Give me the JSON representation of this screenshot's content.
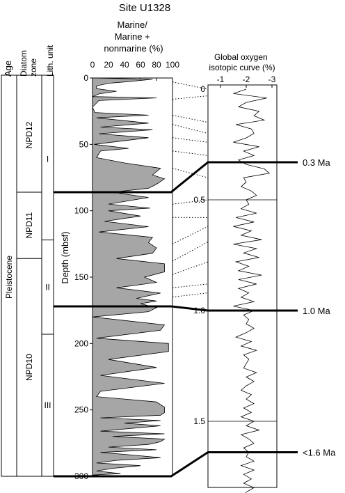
{
  "chart_data": {
    "type": "area",
    "title": "Site U1328",
    "columns": {
      "age": "Age",
      "diatom_zone": "Diatom zone",
      "lith_unit": "Lith. unit"
    },
    "age_label": "Pleistocene",
    "diatom_zones": [
      {
        "name": "NPD12",
        "top_mbsf": 0,
        "bottom_mbsf": 86
      },
      {
        "name": "NPD11",
        "top_mbsf": 86,
        "bottom_mbsf": 136
      },
      {
        "name": "NPD10",
        "top_mbsf": 136,
        "bottom_mbsf": 300
      }
    ],
    "lith_units": [
      {
        "name": "I",
        "top_mbsf": 0,
        "bottom_mbsf": 122
      },
      {
        "name": "II",
        "top_mbsf": 122,
        "bottom_mbsf": 193
      },
      {
        "name": "III",
        "top_mbsf": 193,
        "bottom_mbsf": 300
      }
    ],
    "marine_panel": {
      "title": "Marine/ Marine + nonmarine (%)",
      "xlabel_lines": [
        "Marine/",
        "Marine +",
        "nonmarine (%)"
      ],
      "ylabel": "Depth (mbsf)",
      "xlim": [
        0,
        100
      ],
      "ylim": [
        0,
        300
      ],
      "xticks": [
        "0",
        "20",
        "40",
        "60",
        "80",
        "100"
      ],
      "yticks": [
        "0",
        "50",
        "100",
        "150",
        "200",
        "250",
        "300"
      ],
      "series": [
        {
          "x": [
            0,
            75,
            40,
            20,
            5,
            5,
            30,
            8,
            0,
            80,
            8,
            0,
            3,
            70,
            5,
            70,
            10,
            75,
            8,
            70,
            2,
            45,
            10,
            5,
            40,
            85,
            75,
            90,
            80,
            70,
            25,
            70,
            20,
            72,
            20,
            60,
            15,
            70,
            8,
            75,
            70,
            80,
            75,
            30,
            90,
            90,
            65,
            80,
            30,
            85,
            55,
            80,
            60,
            80,
            70,
            0,
            90,
            85,
            5,
            95,
            95,
            20,
            80,
            10,
            90,
            10,
            5,
            80,
            90,
            90,
            85,
            10,
            85,
            40,
            85,
            10,
            90,
            25,
            90,
            85,
            70,
            20,
            80,
            10,
            50,
            85,
            30,
            5,
            60,
            25,
            5,
            35,
            0,
            25,
            35,
            0
          ],
          "depth": [
            0,
            1,
            3,
            4,
            6,
            8,
            10,
            12,
            14,
            15,
            17,
            22,
            26,
            28,
            30,
            34,
            37,
            39,
            42,
            45,
            50,
            53,
            55,
            60,
            64,
            68,
            73,
            76,
            80,
            83,
            86,
            90,
            95,
            98,
            100,
            104,
            108,
            112,
            116,
            120,
            124,
            128,
            132,
            136,
            140,
            146,
            150,
            154,
            158,
            162,
            166,
            168,
            170,
            173,
            176,
            180,
            186,
            190,
            196,
            200,
            206,
            212,
            218,
            224,
            230,
            236,
            240,
            244,
            248,
            252,
            254,
            256,
            258,
            260,
            262,
            266,
            268,
            270,
            272,
            274,
            276,
            278,
            280,
            282,
            284,
            286,
            288,
            290,
            292,
            294,
            296,
            298,
            299,
            300,
            300,
            300
          ]
        }
      ]
    },
    "isotope_panel": {
      "title": "Global oxygen isotopic curve (%)",
      "xlabel_lines": [
        "Global oxygen",
        "isotopic curve (%)"
      ],
      "xticks": [
        "-1",
        "-2",
        "-3"
      ],
      "xlim": [
        -0.7,
        -3.3
      ],
      "age_ticks": [
        "0",
        "0.5",
        "1.0",
        "1.5"
      ],
      "age_ma": [
        0,
        0.02,
        0.04,
        0.06,
        0.08,
        0.1,
        0.12,
        0.14,
        0.16,
        0.18,
        0.2,
        0.22,
        0.24,
        0.26,
        0.28,
        0.3,
        0.32,
        0.34,
        0.36,
        0.38,
        0.4,
        0.42,
        0.44,
        0.46,
        0.48,
        0.5,
        0.52,
        0.54,
        0.56,
        0.58,
        0.6,
        0.62,
        0.64,
        0.66,
        0.68,
        0.7,
        0.72,
        0.74,
        0.76,
        0.78,
        0.8,
        0.82,
        0.84,
        0.86,
        0.88,
        0.9,
        0.92,
        0.94,
        0.96,
        0.98,
        1.0,
        1.02,
        1.04,
        1.06,
        1.08,
        1.1,
        1.12,
        1.14,
        1.16,
        1.18,
        1.2,
        1.22,
        1.24,
        1.26,
        1.28,
        1.3,
        1.32,
        1.34,
        1.36,
        1.38,
        1.4,
        1.42,
        1.44,
        1.46,
        1.48,
        1.5,
        1.52,
        1.54,
        1.56,
        1.58,
        1.6,
        1.62,
        1.64,
        1.66,
        1.68,
        1.7,
        1.72,
        1.74,
        1.76,
        1.78,
        1.8,
        1.82,
        1.84,
        1.86,
        1.88
      ],
      "d18o": [
        -2.0,
        -1.5,
        -2.8,
        -2.0,
        -1.7,
        -2.5,
        -2.3,
        -2.7,
        -1.6,
        -2.2,
        -2.3,
        -2.0,
        -1.5,
        -2.5,
        -1.9,
        -2.3,
        -1.7,
        -2.0,
        -2.7,
        -2.9,
        -1.9,
        -2.0,
        -1.8,
        -2.2,
        -2.4,
        -2.0,
        -2.1,
        -1.8,
        -2.4,
        -1.6,
        -2.3,
        -1.5,
        -2.2,
        -1.8,
        -2.6,
        -1.5,
        -2.4,
        -1.9,
        -2.5,
        -1.6,
        -2.1,
        -1.7,
        -2.6,
        -1.7,
        -2.4,
        -1.7,
        -2.1,
        -1.8,
        -2.3,
        -1.5,
        -2.3,
        -1.9,
        -2.1,
        -2.0,
        -2.3,
        -2.0,
        -1.6,
        -2.2,
        -1.8,
        -2.4,
        -1.9,
        -2.1,
        -2.0,
        -1.9,
        -2.4,
        -2.0,
        -2.3,
        -2.0,
        -1.8,
        -2.2,
        -2.0,
        -2.3,
        -1.9,
        -2.2,
        -1.8,
        -2.3,
        -2.0,
        -2.5,
        -1.8,
        -2.1,
        -2.3,
        -1.9,
        -2.1,
        -2.0,
        -2.3,
        -1.8,
        -2.3,
        -1.9,
        -2.2,
        -1.9,
        -2.3,
        -2.0,
        -1.9,
        -2.3,
        -2.0
      ]
    },
    "tie_lines": [
      {
        "depth_mbsf": 3,
        "age_ma": 0.0
      },
      {
        "depth_mbsf": 16,
        "age_ma": 0.03
      },
      {
        "depth_mbsf": 28,
        "age_ma": 0.15
      },
      {
        "depth_mbsf": 35,
        "age_ma": 0.2
      },
      {
        "depth_mbsf": 45,
        "age_ma": 0.24
      },
      {
        "depth_mbsf": 55,
        "age_ma": 0.3
      },
      {
        "depth_mbsf": 68,
        "age_ma": 0.4
      },
      {
        "depth_mbsf": 95,
        "age_ma": 0.5
      },
      {
        "depth_mbsf": 105,
        "age_ma": 0.58
      },
      {
        "depth_mbsf": 125,
        "age_ma": 0.62
      },
      {
        "depth_mbsf": 138,
        "age_ma": 0.69
      },
      {
        "depth_mbsf": 148,
        "age_ma": 0.78
      },
      {
        "depth_mbsf": 158,
        "age_ma": 0.88
      },
      {
        "depth_mbsf": 165,
        "age_ma": 0.92
      }
    ],
    "age_markers": [
      {
        "label": "0.3 Ma",
        "depth_mbsf": 86,
        "age_ma": 0.33
      },
      {
        "label": "1.0 Ma",
        "depth_mbsf": 172,
        "age_ma": 1.0
      },
      {
        "label": "<1.6 Ma",
        "depth_mbsf": 300,
        "age_ma": 1.64
      }
    ],
    "colors": {
      "fill": "#a6a6a6",
      "line": "#000000"
    }
  }
}
